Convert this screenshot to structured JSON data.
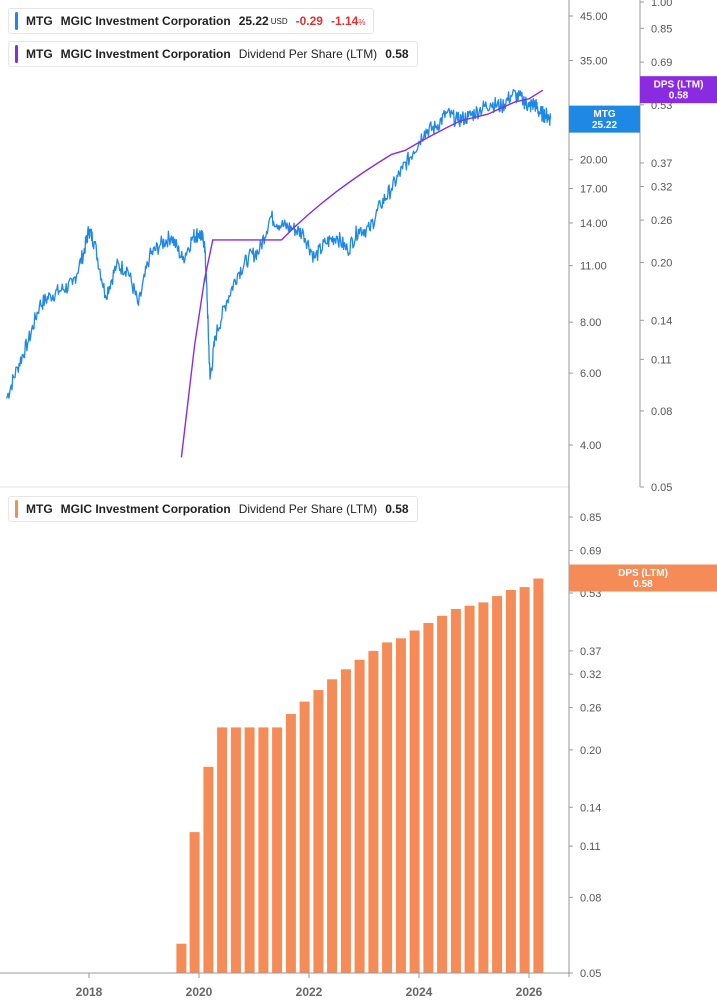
{
  "legend_top_price": {
    "ticker": "MTG",
    "company": "MGIC Investment Corporation",
    "price": "25.22",
    "currency": "USD",
    "change": "-0.29",
    "change_pct": "-1.14",
    "pct_sign": "%",
    "color": "#1e88e5"
  },
  "legend_top_dps": {
    "ticker": "MTG",
    "company": "MGIC Investment Corporation",
    "metric": "Dividend Per Share (LTM)",
    "value": "0.58",
    "color": "#8a2be2"
  },
  "legend_bottom_dps": {
    "ticker": "MTG",
    "company": "MGIC Investment Corporation",
    "metric": "Dividend Per Share (LTM)",
    "value": "0.58",
    "color": "#f58b57"
  },
  "badges": {
    "price": {
      "line1": "MTG",
      "line2": "25.22",
      "color": "#1e88e5"
    },
    "dps_top": {
      "line1": "DPS (LTM)",
      "line2": "0.58",
      "color": "#8a2be2"
    },
    "dps_bottom": {
      "line1": "DPS (LTM)",
      "line2": "0.58",
      "color": "#f58b57"
    }
  },
  "chart_data": [
    {
      "type": "line",
      "title": "",
      "scale": "log",
      "series": [
        {
          "name": "MTG",
          "color": "#1e88e5",
          "x": [
            2016.5,
            2016.7,
            2016.9,
            2017.1,
            2017.3,
            2017.5,
            2017.7,
            2017.9,
            2018.0,
            2018.1,
            2018.3,
            2018.5,
            2018.7,
            2018.9,
            2019.1,
            2019.3,
            2019.5,
            2019.7,
            2019.9,
            2020.0,
            2020.1,
            2020.15,
            2020.2,
            2020.3,
            2020.5,
            2020.7,
            2020.9,
            2021.1,
            2021.3,
            2021.5,
            2021.7,
            2021.9,
            2022.1,
            2022.3,
            2022.5,
            2022.7,
            2022.9,
            2023.1,
            2023.3,
            2023.5,
            2023.7,
            2023.9,
            2024.1,
            2024.3,
            2024.5,
            2024.7,
            2024.9,
            2025.1,
            2025.3,
            2025.5,
            2025.7,
            2025.9,
            2026.0,
            2026.1,
            2026.2,
            2026.3,
            2026.4
          ],
          "y": [
            5.2,
            6.2,
            7.2,
            8.8,
            9.3,
            9.6,
            9.9,
            11.8,
            13.5,
            12.5,
            9.3,
            11.0,
            10.8,
            8.8,
            11.6,
            12.4,
            13.0,
            11.4,
            13.0,
            13.2,
            12.6,
            9.0,
            5.8,
            7.4,
            9.0,
            10.5,
            11.5,
            12.0,
            14.5,
            13.8,
            13.6,
            13.2,
            11.5,
            12.5,
            13.0,
            12.0,
            13.5,
            13.5,
            15.5,
            17.0,
            19.0,
            21.0,
            23.5,
            24.0,
            26.0,
            25.0,
            25.5,
            26.5,
            27.5,
            27.0,
            29.0,
            28.0,
            27.0,
            27.5,
            26.0,
            25.8,
            25.22
          ]
        },
        {
          "name": "Dividend Per Share (LTM)",
          "color": "#8a2be2",
          "x": [
            2019.68,
            2019.92,
            2020.1,
            2020.25,
            2020.45,
            2021.5,
            2021.75,
            2022.0,
            2022.25,
            2022.5,
            2022.75,
            2023.0,
            2023.25,
            2023.5,
            2023.75,
            2024.0,
            2024.25,
            2024.5,
            2024.75,
            2025.0,
            2025.25,
            2025.5,
            2025.75,
            2026.0,
            2026.25
          ],
          "y": [
            0.06,
            0.12,
            0.18,
            0.23,
            0.23,
            0.23,
            0.25,
            0.27,
            0.29,
            0.31,
            0.33,
            0.35,
            0.37,
            0.39,
            0.4,
            0.42,
            0.44,
            0.46,
            0.48,
            0.49,
            0.5,
            0.52,
            0.54,
            0.55,
            0.58
          ]
        }
      ],
      "price_axis": {
        "ticks": [
          "4.00",
          "6.00",
          "8.00",
          "11.00",
          "14.00",
          "17.00",
          "20.00",
          "35.00",
          "45.00"
        ]
      },
      "dps_axis": {
        "ticks": [
          "0.05",
          "0.08",
          "0.11",
          "0.14",
          "0.20",
          "0.26",
          "0.32",
          "0.37",
          "0.53",
          "0.69",
          "0.85",
          "1.00"
        ]
      }
    },
    {
      "type": "bar",
      "title": "",
      "scale": "log",
      "series": [
        {
          "name": "Dividend Per Share (LTM)",
          "color": "#f58b57",
          "x": [
            2019.68,
            2019.92,
            2020.17,
            2020.42,
            2020.67,
            2020.92,
            2021.17,
            2021.42,
            2021.67,
            2021.92,
            2022.17,
            2022.42,
            2022.67,
            2022.92,
            2023.17,
            2023.42,
            2023.67,
            2023.92,
            2024.17,
            2024.42,
            2024.67,
            2024.92,
            2025.17,
            2025.42,
            2025.67,
            2025.92,
            2026.17
          ],
          "values": [
            0.06,
            0.12,
            0.18,
            0.23,
            0.23,
            0.23,
            0.23,
            0.23,
            0.25,
            0.27,
            0.29,
            0.31,
            0.33,
            0.35,
            0.37,
            0.39,
            0.4,
            0.42,
            0.44,
            0.46,
            0.48,
            0.49,
            0.5,
            0.52,
            0.54,
            0.55,
            0.58
          ]
        }
      ],
      "dps_axis": {
        "ticks": [
          "0.05",
          "0.08",
          "0.11",
          "0.14",
          "0.20",
          "0.26",
          "0.32",
          "0.37",
          "0.53",
          "0.69",
          "0.85"
        ]
      },
      "x_axis": {
        "ticks": [
          "2018",
          "2020",
          "2022",
          "2024",
          "2026"
        ]
      }
    }
  ]
}
